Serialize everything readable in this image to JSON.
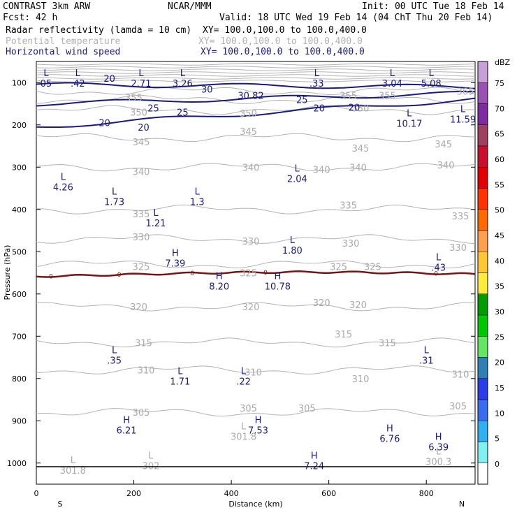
{
  "header": {
    "line1_left": "CONTRAST  3km ARW",
    "line1_center": "NCAR/MMM",
    "line1_right": "Init: 00 UTC Tue 18 Feb 14",
    "line2_left": "Fcst:   42 h",
    "line2_right": "Valid: 18 UTC Wed 19 Feb 14 (04 ChT Thu 20 Feb 14)",
    "fields": [
      {
        "name": "Radar reflectivity (lamda = 10 cm)",
        "xy": "XY= 100.0,100.0 to 100.0,400.0",
        "color": "#000000"
      },
      {
        "name": "Potential temperature",
        "xy": "XY= 100.0,100.0 to 100.0,400.0",
        "color": "#b3b3b3"
      },
      {
        "name": "Horizontal wind speed",
        "xy": "XY= 100.0,100.0 to 100.0,400.0",
        "color": "#1a1a80"
      }
    ]
  },
  "chart_data": {
    "type": "cross-section",
    "xlabel": "Distance (km)",
    "ylabel": "Pressure (hPa)",
    "xlim": [
      0,
      900
    ],
    "ylim": [
      1050,
      50
    ],
    "x_ticks": [
      "0",
      "200",
      "400",
      "600",
      "800"
    ],
    "y_ticks": [
      "100",
      "200",
      "300",
      "400",
      "500",
      "600",
      "700",
      "800",
      "900",
      "1000"
    ],
    "end_labels": {
      "left": "S",
      "right": "N"
    },
    "colorbar": {
      "unit": "dBZ",
      "levels": [
        "75",
        "70",
        "65",
        "60",
        "55",
        "50",
        "45",
        "40",
        "35",
        "30",
        "25",
        "20",
        "15",
        "10",
        "5",
        "0"
      ],
      "colors": [
        "#c8a0d8",
        "#9b50b4",
        "#7e2aa0",
        "#a04060",
        "#c8102e",
        "#e40000",
        "#ff3200",
        "#ff6a00",
        "#ffa050",
        "#ffc832",
        "#ffeb3b",
        "#009c00",
        "#00c800",
        "#64e664",
        "#2f7fb5",
        "#2a3de6",
        "#3a6cf0",
        "#30b0f0",
        "#80f0f0",
        "#ffffff"
      ]
    },
    "theta_isentropes": [
      {
        "label": "365",
        "p": 120
      },
      {
        "label": "355",
        "p": 140
      },
      {
        "label": "350",
        "p": 165
      },
      {
        "label": "345",
        "p": 230
      },
      {
        "label": "340",
        "p": 300
      },
      {
        "label": "335",
        "p": 400
      },
      {
        "label": "330",
        "p": 470
      },
      {
        "label": "325",
        "p": 530
      },
      {
        "label": "320",
        "p": 630
      },
      {
        "label": "315",
        "p": 715
      },
      {
        "label": "310",
        "p": 780
      },
      {
        "label": "305",
        "p": 880
      }
    ],
    "theta_labels": [
      {
        "text": "355",
        "x": 200,
        "p": 135
      },
      {
        "text": "355",
        "x": 640,
        "p": 130
      },
      {
        "text": "355",
        "x": 720,
        "p": 130
      },
      {
        "text": "365",
        "x": 880,
        "p": 120
      },
      {
        "text": "350",
        "x": 210,
        "p": 170
      },
      {
        "text": "350",
        "x": 435,
        "p": 172
      },
      {
        "text": "350",
        "x": 665,
        "p": 160
      },
      {
        "text": "345",
        "x": 215,
        "p": 240
      },
      {
        "text": "345",
        "x": 435,
        "p": 215
      },
      {
        "text": "345",
        "x": 665,
        "p": 255
      },
      {
        "text": "345",
        "x": 835,
        "p": 245
      },
      {
        "text": "340",
        "x": 215,
        "p": 310
      },
      {
        "text": "340",
        "x": 440,
        "p": 300
      },
      {
        "text": "340",
        "x": 585,
        "p": 305
      },
      {
        "text": "340",
        "x": 660,
        "p": 300
      },
      {
        "text": "340",
        "x": 840,
        "p": 295
      },
      {
        "text": "335",
        "x": 215,
        "p": 410
      },
      {
        "text": "335",
        "x": 640,
        "p": 390
      },
      {
        "text": "335",
        "x": 870,
        "p": 415
      },
      {
        "text": "330",
        "x": 215,
        "p": 465
      },
      {
        "text": "330",
        "x": 440,
        "p": 475
      },
      {
        "text": "330",
        "x": 645,
        "p": 480
      },
      {
        "text": "330",
        "x": 865,
        "p": 490
      },
      {
        "text": "325",
        "x": 215,
        "p": 535
      },
      {
        "text": "325",
        "x": 435,
        "p": 550
      },
      {
        "text": "325",
        "x": 620,
        "p": 535
      },
      {
        "text": "325",
        "x": 690,
        "p": 535
      },
      {
        "text": "320",
        "x": 210,
        "p": 630
      },
      {
        "text": "320",
        "x": 440,
        "p": 630
      },
      {
        "text": "320",
        "x": 585,
        "p": 620
      },
      {
        "text": "320",
        "x": 660,
        "p": 625
      },
      {
        "text": "315",
        "x": 220,
        "p": 715
      },
      {
        "text": "315",
        "x": 630,
        "p": 695
      },
      {
        "text": "315",
        "x": 720,
        "p": 715
      },
      {
        "text": "310",
        "x": 225,
        "p": 780
      },
      {
        "text": "310",
        "x": 445,
        "p": 785
      },
      {
        "text": "310",
        "x": 665,
        "p": 800
      },
      {
        "text": "310",
        "x": 870,
        "p": 790
      },
      {
        "text": "305",
        "x": 215,
        "p": 880
      },
      {
        "text": "305",
        "x": 435,
        "p": 870
      },
      {
        "text": "305",
        "x": 555,
        "p": 870
      },
      {
        "text": "305",
        "x": 865,
        "p": 865
      }
    ],
    "wind_contours": [
      {
        "label": "20",
        "p_left": 205,
        "p_right": 140
      },
      {
        "label": "25",
        "p_left": 150,
        "p_right": 125
      },
      {
        "label": "30",
        "p_left": 105,
        "p_right": 110
      }
    ],
    "wind_labels": [
      {
        "text": "20",
        "x": 150,
        "p": 90
      },
      {
        "text": "20",
        "x": 140,
        "p": 195
      },
      {
        "text": "20",
        "x": 220,
        "p": 205
      },
      {
        "text": "25",
        "x": 240,
        "p": 160
      },
      {
        "text": "25",
        "x": 300,
        "p": 170
      },
      {
        "text": "25",
        "x": 545,
        "p": 140
      },
      {
        "text": "20",
        "x": 580,
        "p": 160
      },
      {
        "text": "20",
        "x": 652,
        "p": 158
      },
      {
        "text": "30",
        "x": 350,
        "p": 115
      },
      {
        "text": "30.82",
        "x": 440,
        "p": 130
      }
    ],
    "freezing_level": {
      "label": "0",
      "p": 555
    },
    "extrema": [
      {
        "kind": "L",
        "value": "05",
        "x": 20,
        "p": 85,
        "color": "navy"
      },
      {
        "kind": "L",
        "value": ".42",
        "x": 85,
        "p": 85,
        "color": "navy"
      },
      {
        "kind": "L",
        "value": "2.71",
        "x": 215,
        "p": 85,
        "color": "navy"
      },
      {
        "kind": "L",
        "value": "3.26",
        "x": 300,
        "p": 85,
        "color": "navy"
      },
      {
        "kind": "L",
        "value": ".33",
        "x": 575,
        "p": 85,
        "color": "navy"
      },
      {
        "kind": "L",
        "value": "3.04",
        "x": 730,
        "p": 85,
        "color": "navy"
      },
      {
        "kind": "L",
        "value": "5.08",
        "x": 810,
        "p": 85,
        "color": "navy"
      },
      {
        "kind": "L",
        "value": "10.17",
        "x": 765,
        "p": 180,
        "color": "navy"
      },
      {
        "kind": "L",
        "value": "11.59",
        "x": 875,
        "p": 170,
        "color": "navy"
      },
      {
        "kind": "L",
        "value": "4.26",
        "x": 55,
        "p": 330,
        "color": "navy"
      },
      {
        "kind": "L",
        "value": "2.04",
        "x": 535,
        "p": 310,
        "color": "navy"
      },
      {
        "kind": "L",
        "value": "1.73",
        "x": 160,
        "p": 365,
        "color": "navy"
      },
      {
        "kind": "L",
        "value": "1.3",
        "x": 330,
        "p": 365,
        "color": "navy"
      },
      {
        "kind": "L",
        "value": "1.21",
        "x": 245,
        "p": 415,
        "color": "navy"
      },
      {
        "kind": "L",
        "value": "1.80",
        "x": 525,
        "p": 480,
        "color": "navy"
      },
      {
        "kind": "H",
        "value": "7.39",
        "x": 285,
        "p": 510,
        "color": "navy"
      },
      {
        "kind": "L",
        "value": ".43",
        "x": 825,
        "p": 520,
        "color": "navy"
      },
      {
        "kind": "H",
        "value": "8.20",
        "x": 375,
        "p": 565,
        "color": "navy"
      },
      {
        "kind": "H",
        "value": "10.78",
        "x": 495,
        "p": 565,
        "color": "navy"
      },
      {
        "kind": "L",
        "value": ".35",
        "x": 160,
        "p": 740,
        "color": "navy"
      },
      {
        "kind": "L",
        "value": ".31",
        "x": 800,
        "p": 740,
        "color": "navy"
      },
      {
        "kind": "L",
        "value": "1.71",
        "x": 295,
        "p": 790,
        "color": "navy"
      },
      {
        "kind": "L",
        "value": ".22",
        "x": 425,
        "p": 790,
        "color": "navy"
      },
      {
        "kind": "H",
        "value": "6.21",
        "x": 185,
        "p": 905,
        "color": "navy"
      },
      {
        "kind": "H",
        "value": "7.53",
        "x": 455,
        "p": 905,
        "color": "navy"
      },
      {
        "kind": "H",
        "value": "6.76",
        "x": 725,
        "p": 925,
        "color": "navy"
      },
      {
        "kind": "H",
        "value": "6.39",
        "x": 825,
        "p": 945,
        "color": "navy"
      },
      {
        "kind": "L",
        "value": "301.8",
        "x": 425,
        "p": 920,
        "color": "gray"
      },
      {
        "kind": "H",
        "value": "7.24",
        "x": 570,
        "p": 990,
        "color": "navy"
      },
      {
        "kind": "L",
        "value": "302",
        "x": 235,
        "p": 990,
        "color": "gray"
      },
      {
        "kind": "L",
        "value": "300.3",
        "x": 825,
        "p": 980,
        "color": "gray"
      },
      {
        "kind": "L",
        "value": "301.8",
        "x": 75,
        "p": 1000,
        "color": "gray"
      }
    ]
  }
}
